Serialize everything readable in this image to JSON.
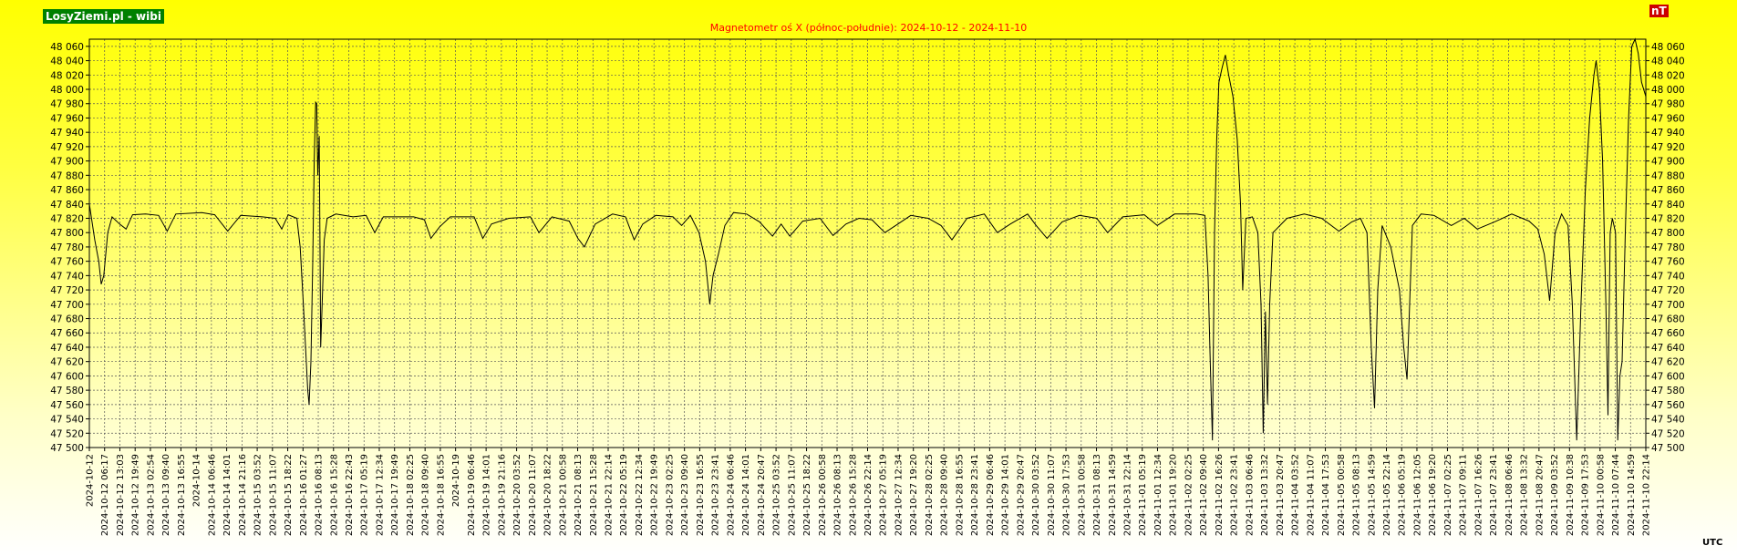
{
  "header": {
    "brand": "LosyZiemi.pl - wibi",
    "unit_badge": "nT",
    "footer_tz": "UTC"
  },
  "colors": {
    "title": "#ff0000",
    "series": "#000000",
    "brand_bg": "#008000",
    "badge_bg": "#cc0000",
    "grid": "#555555"
  },
  "chart_data": {
    "type": "line",
    "title": "Magnetometr oś X (północ-południe): 2024-10-12 - 2024-11-10",
    "ylim": [
      47500,
      48070
    ],
    "xlim": [
      "2024-10-12 00:00",
      "2024-11-10 23:59"
    ],
    "grid": true,
    "legend": "none",
    "y_ticks": [
      47500,
      47520,
      47540,
      47560,
      47580,
      47600,
      47620,
      47640,
      47660,
      47680,
      47700,
      47720,
      47740,
      47760,
      47780,
      47800,
      47820,
      47840,
      47860,
      47880,
      47900,
      47920,
      47940,
      47960,
      47980,
      48000,
      48020,
      48040,
      48060
    ],
    "y_tick_labels": [
      "47 500",
      "47 520",
      "47 540",
      "47 560",
      "47 580",
      "47 600",
      "47 620",
      "47 640",
      "47 660",
      "47 680",
      "47 700",
      "47 720",
      "47 740",
      "47 760",
      "47 780",
      "47 800",
      "47 820",
      "47 840",
      "47 860",
      "47 880",
      "47 900",
      "47 920",
      "47 940",
      "47 960",
      "47 980",
      "48 000",
      "48 020",
      "48 040",
      "48 060"
    ],
    "x_tick_labels": [
      "2024-10-12",
      "2024-10-12 06:17",
      "2024-10-12 13:03",
      "2024-10-12 19:49",
      "2024-10-13 02:54",
      "2024-10-13 09:40",
      "2024-10-13 16:55",
      "2024-10-14",
      "2024-10-14 06:46",
      "2024-10-14 14:01",
      "2024-10-14 21:16",
      "2024-10-15 03:52",
      "2024-10-15 11:07",
      "2024-10-15 18:22",
      "2024-10-16 01:27",
      "2024-10-16 08:13",
      "2024-10-16 15:28",
      "2024-10-16 22:43",
      "2024-10-17 05:19",
      "2024-10-17 12:34",
      "2024-10-17 19:49",
      "2024-10-18 02:25",
      "2024-10-18 09:40",
      "2024-10-18 16:55",
      "2024-10-19",
      "2024-10-19 06:46",
      "2024-10-19 14:01",
      "2024-10-19 21:16",
      "2024-10-20 03:52",
      "2024-10-20 11:07",
      "2024-10-20 18:22",
      "2024-10-21 00:58",
      "2024-10-21 08:13",
      "2024-10-21 15:28",
      "2024-10-21 22:14",
      "2024-10-22 05:19",
      "2024-10-22 12:34",
      "2024-10-22 19:49",
      "2024-10-23 02:25",
      "2024-10-23 09:40",
      "2024-10-23 16:55",
      "2024-10-23 23:41",
      "2024-10-24 06:46",
      "2024-10-24 14:01",
      "2024-10-24 20:47",
      "2024-10-25 03:52",
      "2024-10-25 11:07",
      "2024-10-25 18:22",
      "2024-10-26 00:58",
      "2024-10-26 08:13",
      "2024-10-26 15:28",
      "2024-10-26 22:14",
      "2024-10-27 05:19",
      "2024-10-27 12:34",
      "2024-10-27 19:20",
      "2024-10-28 02:25",
      "2024-10-28 09:40",
      "2024-10-28 16:55",
      "2024-10-28 23:41",
      "2024-10-29 06:46",
      "2024-10-29 14:01",
      "2024-10-29 20:47",
      "2024-10-30 03:52",
      "2024-10-30 11:07",
      "2024-10-30 17:53",
      "2024-10-31 00:58",
      "2024-10-31 08:13",
      "2024-10-31 14:59",
      "2024-10-31 22:14",
      "2024-11-01 05:19",
      "2024-11-01 12:34",
      "2024-11-01 19:20",
      "2024-11-02 02:25",
      "2024-11-02 09:40",
      "2024-11-02 16:26",
      "2024-11-02 23:41",
      "2024-11-03 06:46",
      "2024-11-03 13:32",
      "2024-11-03 20:47",
      "2024-11-04 03:52",
      "2024-11-04 11:07",
      "2024-11-04 17:53",
      "2024-11-05 00:58",
      "2024-11-05 08:13",
      "2024-11-05 14:59",
      "2024-11-05 22:14",
      "2024-11-06 05:19",
      "2024-11-06 12:05",
      "2024-11-06 19:20",
      "2024-11-07 02:25",
      "2024-11-07 09:11",
      "2024-11-07 16:26",
      "2024-11-07 23:41",
      "2024-11-08 06:46",
      "2024-11-08 13:32",
      "2024-11-08 20:47",
      "2024-11-09 03:52",
      "2024-11-09 10:38",
      "2024-11-09 17:53",
      "2024-11-10 00:58",
      "2024-11-10 07:44",
      "2024-11-10 14:59",
      "2024-11-10 22:14"
    ],
    "series": [
      {
        "values": [
          [
            "2024-10-12 00:00",
            47840
          ],
          [
            "2024-10-12 02:30",
            47790
          ],
          [
            "2024-10-12 04:20",
            47760
          ],
          [
            "2024-10-12 05:30",
            47728
          ],
          [
            "2024-10-12 06:40",
            47740
          ],
          [
            "2024-10-12 08:30",
            47800
          ],
          [
            "2024-10-12 10:30",
            47822
          ],
          [
            "2024-10-12 14:00",
            47812
          ],
          [
            "2024-10-12 17:00",
            47805
          ],
          [
            "2024-10-12 20:00",
            47825
          ],
          [
            "2024-10-13 02:00",
            47826
          ],
          [
            "2024-10-13 08:00",
            47824
          ],
          [
            "2024-10-13 12:00",
            47802
          ],
          [
            "2024-10-13 16:00",
            47826
          ],
          [
            "2024-10-14 04:00",
            47828
          ],
          [
            "2024-10-14 10:00",
            47825
          ],
          [
            "2024-10-14 16:00",
            47802
          ],
          [
            "2024-10-14 22:00",
            47824
          ],
          [
            "2024-10-15 08:00",
            47822
          ],
          [
            "2024-10-15 14:00",
            47820
          ],
          [
            "2024-10-15 17:00",
            47805
          ],
          [
            "2024-10-15 20:00",
            47825
          ],
          [
            "2024-10-16 00:00",
            47820
          ],
          [
            "2024-10-16 01:30",
            47780
          ],
          [
            "2024-10-16 03:00",
            47700
          ],
          [
            "2024-10-16 04:00",
            47640
          ],
          [
            "2024-10-16 05:00",
            47580
          ],
          [
            "2024-10-16 05:40",
            47560
          ],
          [
            "2024-10-16 06:30",
            47620
          ],
          [
            "2024-10-16 07:20",
            47760
          ],
          [
            "2024-10-16 08:00",
            47900
          ],
          [
            "2024-10-16 08:40",
            47982
          ],
          [
            "2024-10-16 09:10",
            47980
          ],
          [
            "2024-10-16 09:40",
            47880
          ],
          [
            "2024-10-16 10:20",
            47935
          ],
          [
            "2024-10-16 11:00",
            47640
          ],
          [
            "2024-10-16 11:40",
            47700
          ],
          [
            "2024-10-16 12:40",
            47790
          ],
          [
            "2024-10-16 14:00",
            47820
          ],
          [
            "2024-10-16 18:00",
            47826
          ],
          [
            "2024-10-17 02:00",
            47822
          ],
          [
            "2024-10-17 08:00",
            47824
          ],
          [
            "2024-10-17 12:00",
            47800
          ],
          [
            "2024-10-17 16:00",
            47822
          ],
          [
            "2024-10-18 06:00",
            47822
          ],
          [
            "2024-10-18 11:00",
            47818
          ],
          [
            "2024-10-18 14:00",
            47792
          ],
          [
            "2024-10-18 18:00",
            47808
          ],
          [
            "2024-10-18 23:00",
            47822
          ],
          [
            "2024-10-19 10:00",
            47822
          ],
          [
            "2024-10-19 14:00",
            47792
          ],
          [
            "2024-10-19 18:00",
            47812
          ],
          [
            "2024-10-20 02:00",
            47820
          ],
          [
            "2024-10-20 12:00",
            47822
          ],
          [
            "2024-10-20 16:00",
            47800
          ],
          [
            "2024-10-20 22:00",
            47822
          ],
          [
            "2024-10-21 06:00",
            47816
          ],
          [
            "2024-10-21 10:00",
            47792
          ],
          [
            "2024-10-21 13:00",
            47780
          ],
          [
            "2024-10-21 18:00",
            47812
          ],
          [
            "2024-10-22 02:00",
            47826
          ],
          [
            "2024-10-22 08:00",
            47822
          ],
          [
            "2024-10-22 12:00",
            47790
          ],
          [
            "2024-10-22 16:00",
            47812
          ],
          [
            "2024-10-22 22:00",
            47824
          ],
          [
            "2024-10-23 06:00",
            47822
          ],
          [
            "2024-10-23 10:00",
            47810
          ],
          [
            "2024-10-23 14:00",
            47824
          ],
          [
            "2024-10-23 18:00",
            47800
          ],
          [
            "2024-10-23 21:00",
            47760
          ],
          [
            "2024-10-23 23:00",
            47700
          ],
          [
            "2024-10-24 00:30",
            47740
          ],
          [
            "2024-10-24 03:00",
            47770
          ],
          [
            "2024-10-24 06:00",
            47810
          ],
          [
            "2024-10-24 10:00",
            47828
          ],
          [
            "2024-10-24 16:00",
            47826
          ],
          [
            "2024-10-24 22:00",
            47815
          ],
          [
            "2024-10-25 04:00",
            47795
          ],
          [
            "2024-10-25 08:00",
            47812
          ],
          [
            "2024-10-25 12:00",
            47795
          ],
          [
            "2024-10-25 18:00",
            47816
          ],
          [
            "2024-10-26 02:00",
            47820
          ],
          [
            "2024-10-26 08:00",
            47796
          ],
          [
            "2024-10-26 14:00",
            47812
          ],
          [
            "2024-10-26 20:00",
            47820
          ],
          [
            "2024-10-27 02:00",
            47818
          ],
          [
            "2024-10-27 08:00",
            47800
          ],
          [
            "2024-10-27 14:00",
            47812
          ],
          [
            "2024-10-27 20:00",
            47824
          ],
          [
            "2024-10-28 04:00",
            47820
          ],
          [
            "2024-10-28 10:00",
            47810
          ],
          [
            "2024-10-28 15:00",
            47790
          ],
          [
            "2024-10-28 22:00",
            47820
          ],
          [
            "2024-10-29 06:00",
            47826
          ],
          [
            "2024-10-29 12:00",
            47800
          ],
          [
            "2024-10-29 18:00",
            47812
          ],
          [
            "2024-10-30 02:00",
            47826
          ],
          [
            "2024-10-30 06:00",
            47810
          ],
          [
            "2024-10-30 11:00",
            47792
          ],
          [
            "2024-10-30 18:00",
            47815
          ],
          [
            "2024-10-31 02:00",
            47824
          ],
          [
            "2024-10-31 10:00",
            47820
          ],
          [
            "2024-10-31 15:00",
            47800
          ],
          [
            "2024-10-31 22:00",
            47822
          ],
          [
            "2024-11-01 08:00",
            47825
          ],
          [
            "2024-11-01 14:00",
            47810
          ],
          [
            "2024-11-01 22:00",
            47826
          ],
          [
            "2024-11-02 08:00",
            47826
          ],
          [
            "2024-11-02 12:00",
            47824
          ],
          [
            "2024-11-02 13:30",
            47740
          ],
          [
            "2024-11-02 14:30",
            47620
          ],
          [
            "2024-11-02 15:30",
            47510
          ],
          [
            "2024-11-02 16:30",
            47800
          ],
          [
            "2024-11-02 17:30",
            47930
          ],
          [
            "2024-11-02 18:30",
            48010
          ],
          [
            "2024-11-02 20:00",
            48030
          ],
          [
            "2024-11-02 21:30",
            48048
          ],
          [
            "2024-11-02 23:00",
            48020
          ],
          [
            "2024-11-03 01:00",
            47990
          ],
          [
            "2024-11-03 03:00",
            47930
          ],
          [
            "2024-11-03 04:30",
            47840
          ],
          [
            "2024-11-03 05:30",
            47720
          ],
          [
            "2024-11-03 07:00",
            47820
          ],
          [
            "2024-11-03 10:00",
            47822
          ],
          [
            "2024-11-03 12:30",
            47800
          ],
          [
            "2024-11-03 14:00",
            47700
          ],
          [
            "2024-11-03 15:00",
            47520
          ],
          [
            "2024-11-03 16:00",
            47690
          ],
          [
            "2024-11-03 17:00",
            47560
          ],
          [
            "2024-11-03 18:00",
            47700
          ],
          [
            "2024-11-03 19:30",
            47800
          ],
          [
            "2024-11-04 02:00",
            47820
          ],
          [
            "2024-11-04 10:00",
            47826
          ],
          [
            "2024-11-04 18:00",
            47820
          ],
          [
            "2024-11-05 02:00",
            47802
          ],
          [
            "2024-11-05 08:00",
            47815
          ],
          [
            "2024-11-05 12:00",
            47820
          ],
          [
            "2024-11-05 15:00",
            47800
          ],
          [
            "2024-11-05 17:00",
            47640
          ],
          [
            "2024-11-05 18:30",
            47555
          ],
          [
            "2024-11-05 20:00",
            47720
          ],
          [
            "2024-11-05 22:00",
            47810
          ],
          [
            "2024-11-06 02:00",
            47780
          ],
          [
            "2024-11-06 06:00",
            47720
          ],
          [
            "2024-11-06 08:00",
            47640
          ],
          [
            "2024-11-06 09:30",
            47595
          ],
          [
            "2024-11-06 12:00",
            47810
          ],
          [
            "2024-11-06 16:00",
            47826
          ],
          [
            "2024-11-06 22:00",
            47824
          ],
          [
            "2024-11-07 06:00",
            47810
          ],
          [
            "2024-11-07 12:00",
            47820
          ],
          [
            "2024-11-07 18:00",
            47805
          ],
          [
            "2024-11-08 02:00",
            47815
          ],
          [
            "2024-11-08 10:00",
            47826
          ],
          [
            "2024-11-08 18:00",
            47816
          ],
          [
            "2024-11-08 22:00",
            47805
          ],
          [
            "2024-11-09 01:00",
            47770
          ],
          [
            "2024-11-09 03:30",
            47705
          ],
          [
            "2024-11-09 06:00",
            47800
          ],
          [
            "2024-11-09 09:00",
            47826
          ],
          [
            "2024-11-09 12:00",
            47810
          ],
          [
            "2024-11-09 14:00",
            47700
          ],
          [
            "2024-11-09 16:00",
            47510
          ],
          [
            "2024-11-09 18:00",
            47700
          ],
          [
            "2024-11-09 20:00",
            47860
          ],
          [
            "2024-11-09 22:00",
            47960
          ],
          [
            "2024-11-10 00:00",
            48020
          ],
          [
            "2024-11-10 01:00",
            48040
          ],
          [
            "2024-11-10 02:30",
            48000
          ],
          [
            "2024-11-10 04:00",
            47900
          ],
          [
            "2024-11-10 05:30",
            47700
          ],
          [
            "2024-11-10 06:30",
            47545
          ],
          [
            "2024-11-10 07:30",
            47800
          ],
          [
            "2024-11-10 08:30",
            47820
          ],
          [
            "2024-11-10 10:00",
            47800
          ],
          [
            "2024-11-10 11:00",
            47510
          ],
          [
            "2024-11-10 12:00",
            47600
          ],
          [
            "2024-11-10 13:00",
            47620
          ],
          [
            "2024-11-10 14:30",
            47800
          ],
          [
            "2024-11-10 16:00",
            47960
          ],
          [
            "2024-11-10 17:30",
            48060
          ],
          [
            "2024-11-10 19:00",
            48070
          ],
          [
            "2024-11-10 20:30",
            48050
          ],
          [
            "2024-11-10 22:00",
            48010
          ],
          [
            "2024-11-10 23:59",
            47990
          ]
        ]
      }
    ]
  }
}
